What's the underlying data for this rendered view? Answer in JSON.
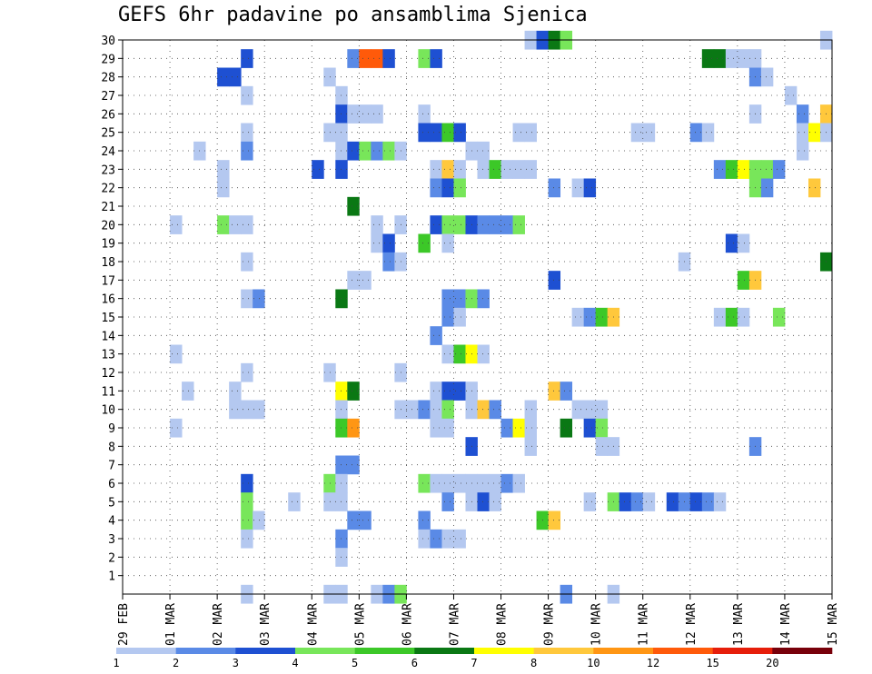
{
  "chart_data": {
    "type": "heatmap",
    "title": "GEFS 6hr padavine po ansamblima Sjenica",
    "x_ticks": [
      "29 FEB",
      "01 MAR",
      "02 MAR",
      "03 MAR",
      "04 MAR",
      "05 MAR",
      "06 MAR",
      "07 MAR",
      "08 MAR",
      "09 MAR",
      "10 MAR",
      "11 MAR",
      "12 MAR",
      "13 MAR",
      "14 MAR",
      "15 MAR"
    ],
    "y_ticks": [
      1,
      2,
      3,
      4,
      5,
      6,
      7,
      8,
      9,
      10,
      11,
      12,
      13,
      14,
      15,
      16,
      17,
      18,
      19,
      20,
      21,
      22,
      23,
      24,
      25,
      26,
      27,
      28,
      29,
      30
    ],
    "xlim_steps": [
      0,
      60
    ],
    "ylim_members": [
      0,
      30
    ],
    "grid": "dotted",
    "colorbar": {
      "levels": [
        "1",
        "2",
        "3",
        "4",
        "5",
        "6",
        "7",
        "8",
        "10",
        "12",
        "15",
        "20"
      ],
      "colors": [
        "#b4c8f0",
        "#5a8ae6",
        "#1e50d2",
        "#78e65a",
        "#3cc828",
        "#0a7814",
        "#ffff00",
        "#ffc83c",
        "#ff9614",
        "#ff5a0a",
        "#e61e0a",
        "#78000a"
      ]
    },
    "cells": [
      [
        34,
        30,
        1
      ],
      [
        35,
        30,
        3
      ],
      [
        36,
        30,
        6
      ],
      [
        37,
        30,
        4
      ],
      [
        59,
        30,
        1
      ],
      [
        10,
        29,
        3
      ],
      [
        19,
        29,
        2
      ],
      [
        20,
        29,
        10
      ],
      [
        21,
        29,
        10
      ],
      [
        22,
        29,
        3
      ],
      [
        25,
        29,
        4
      ],
      [
        26,
        29,
        3
      ],
      [
        49,
        29,
        6
      ],
      [
        50,
        29,
        6
      ],
      [
        51,
        29,
        1
      ],
      [
        52,
        29,
        1
      ],
      [
        53,
        29,
        1
      ],
      [
        8,
        28,
        3
      ],
      [
        9,
        28,
        3
      ],
      [
        17,
        28,
        1
      ],
      [
        53,
        28,
        2
      ],
      [
        54,
        28,
        1
      ],
      [
        10,
        27,
        1
      ],
      [
        18,
        27,
        1
      ],
      [
        56,
        27,
        1
      ],
      [
        18,
        26,
        3
      ],
      [
        19,
        26,
        1
      ],
      [
        20,
        26,
        1
      ],
      [
        21,
        26,
        1
      ],
      [
        25,
        26,
        1
      ],
      [
        53,
        26,
        1
      ],
      [
        57,
        26,
        2
      ],
      [
        59,
        26,
        8
      ],
      [
        10,
        25,
        1
      ],
      [
        17,
        25,
        1
      ],
      [
        18,
        25,
        1
      ],
      [
        25,
        25,
        3
      ],
      [
        26,
        25,
        3
      ],
      [
        27,
        25,
        5
      ],
      [
        28,
        25,
        3
      ],
      [
        33,
        25,
        1
      ],
      [
        34,
        25,
        1
      ],
      [
        43,
        25,
        1
      ],
      [
        44,
        25,
        1
      ],
      [
        48,
        25,
        2
      ],
      [
        49,
        25,
        1
      ],
      [
        57,
        25,
        1
      ],
      [
        58,
        25,
        7
      ],
      [
        59,
        25,
        1
      ],
      [
        6,
        24,
        1
      ],
      [
        10,
        24,
        2
      ],
      [
        18,
        24,
        1
      ],
      [
        19,
        24,
        3
      ],
      [
        20,
        24,
        4
      ],
      [
        21,
        24,
        2
      ],
      [
        22,
        24,
        4
      ],
      [
        23,
        24,
        1
      ],
      [
        29,
        24,
        1
      ],
      [
        30,
        24,
        1
      ],
      [
        57,
        24,
        1
      ],
      [
        8,
        23,
        1
      ],
      [
        16,
        23,
        3
      ],
      [
        18,
        23,
        3
      ],
      [
        26,
        23,
        1
      ],
      [
        27,
        23,
        8
      ],
      [
        28,
        23,
        1
      ],
      [
        30,
        23,
        1
      ],
      [
        31,
        23,
        5
      ],
      [
        32,
        23,
        1
      ],
      [
        33,
        23,
        1
      ],
      [
        34,
        23,
        1
      ],
      [
        50,
        23,
        2
      ],
      [
        51,
        23,
        5
      ],
      [
        52,
        23,
        7
      ],
      [
        53,
        23,
        4
      ],
      [
        54,
        23,
        4
      ],
      [
        55,
        23,
        2
      ],
      [
        8,
        22,
        1
      ],
      [
        26,
        22,
        2
      ],
      [
        27,
        22,
        3
      ],
      [
        28,
        22,
        4
      ],
      [
        36,
        22,
        2
      ],
      [
        38,
        22,
        1
      ],
      [
        39,
        22,
        3
      ],
      [
        53,
        22,
        4
      ],
      [
        54,
        22,
        2
      ],
      [
        58,
        22,
        8
      ],
      [
        19,
        21,
        6
      ],
      [
        4,
        20,
        1
      ],
      [
        8,
        20,
        4
      ],
      [
        9,
        20,
        1
      ],
      [
        10,
        20,
        1
      ],
      [
        21,
        20,
        1
      ],
      [
        23,
        20,
        1
      ],
      [
        26,
        20,
        3
      ],
      [
        27,
        20,
        4
      ],
      [
        28,
        20,
        4
      ],
      [
        29,
        20,
        3
      ],
      [
        30,
        20,
        2
      ],
      [
        31,
        20,
        2
      ],
      [
        32,
        20,
        2
      ],
      [
        33,
        20,
        4
      ],
      [
        21,
        19,
        1
      ],
      [
        22,
        19,
        3
      ],
      [
        25,
        19,
        5
      ],
      [
        27,
        19,
        1
      ],
      [
        51,
        19,
        3
      ],
      [
        52,
        19,
        1
      ],
      [
        10,
        18,
        1
      ],
      [
        22,
        18,
        2
      ],
      [
        23,
        18,
        1
      ],
      [
        47,
        18,
        1
      ],
      [
        59,
        18,
        6
      ],
      [
        19,
        17,
        1
      ],
      [
        20,
        17,
        1
      ],
      [
        36,
        17,
        3
      ],
      [
        52,
        17,
        5
      ],
      [
        53,
        17,
        8
      ],
      [
        10,
        16,
        1
      ],
      [
        11,
        16,
        2
      ],
      [
        18,
        16,
        6
      ],
      [
        27,
        16,
        2
      ],
      [
        28,
        16,
        2
      ],
      [
        29,
        16,
        4
      ],
      [
        30,
        16,
        2
      ],
      [
        27,
        15,
        2
      ],
      [
        28,
        15,
        1
      ],
      [
        38,
        15,
        1
      ],
      [
        39,
        15,
        2
      ],
      [
        40,
        15,
        5
      ],
      [
        41,
        15,
        8
      ],
      [
        50,
        15,
        1
      ],
      [
        51,
        15,
        5
      ],
      [
        52,
        15,
        1
      ],
      [
        55,
        15,
        4
      ],
      [
        26,
        14,
        2
      ],
      [
        4,
        13,
        1
      ],
      [
        27,
        13,
        1
      ],
      [
        28,
        13,
        5
      ],
      [
        29,
        13,
        7
      ],
      [
        30,
        13,
        1
      ],
      [
        10,
        12,
        1
      ],
      [
        17,
        12,
        1
      ],
      [
        23,
        12,
        1
      ],
      [
        5,
        11,
        1
      ],
      [
        9,
        11,
        1
      ],
      [
        18,
        11,
        7
      ],
      [
        19,
        11,
        6
      ],
      [
        26,
        11,
        1
      ],
      [
        27,
        11,
        3
      ],
      [
        28,
        11,
        3
      ],
      [
        29,
        11,
        1
      ],
      [
        36,
        11,
        8
      ],
      [
        37,
        11,
        2
      ],
      [
        9,
        10,
        1
      ],
      [
        10,
        10,
        1
      ],
      [
        11,
        10,
        1
      ],
      [
        18,
        10,
        1
      ],
      [
        23,
        10,
        1
      ],
      [
        24,
        10,
        1
      ],
      [
        25,
        10,
        2
      ],
      [
        26,
        10,
        1
      ],
      [
        27,
        10,
        4
      ],
      [
        29,
        10,
        1
      ],
      [
        30,
        10,
        8
      ],
      [
        31,
        10,
        2
      ],
      [
        34,
        10,
        1
      ],
      [
        38,
        10,
        1
      ],
      [
        39,
        10,
        1
      ],
      [
        40,
        10,
        1
      ],
      [
        4,
        9,
        1
      ],
      [
        18,
        9,
        5
      ],
      [
        19,
        9,
        9
      ],
      [
        26,
        9,
        1
      ],
      [
        27,
        9,
        1
      ],
      [
        32,
        9,
        2
      ],
      [
        33,
        9,
        7
      ],
      [
        34,
        9,
        1
      ],
      [
        37,
        9,
        6
      ],
      [
        39,
        9,
        3
      ],
      [
        40,
        9,
        4
      ],
      [
        29,
        8,
        3
      ],
      [
        34,
        8,
        1
      ],
      [
        40,
        8,
        1
      ],
      [
        41,
        8,
        1
      ],
      [
        53,
        8,
        2
      ],
      [
        18,
        7,
        2
      ],
      [
        19,
        7,
        2
      ],
      [
        10,
        6,
        3
      ],
      [
        17,
        6,
        4
      ],
      [
        18,
        6,
        1
      ],
      [
        25,
        6,
        4
      ],
      [
        26,
        6,
        1
      ],
      [
        27,
        6,
        1
      ],
      [
        28,
        6,
        1
      ],
      [
        29,
        6,
        1
      ],
      [
        30,
        6,
        1
      ],
      [
        31,
        6,
        1
      ],
      [
        32,
        6,
        2
      ],
      [
        33,
        6,
        1
      ],
      [
        10,
        5,
        4
      ],
      [
        14,
        5,
        1
      ],
      [
        17,
        5,
        1
      ],
      [
        18,
        5,
        1
      ],
      [
        27,
        5,
        2
      ],
      [
        29,
        5,
        1
      ],
      [
        30,
        5,
        3
      ],
      [
        31,
        5,
        1
      ],
      [
        39,
        5,
        1
      ],
      [
        41,
        5,
        4
      ],
      [
        42,
        5,
        3
      ],
      [
        43,
        5,
        2
      ],
      [
        44,
        5,
        1
      ],
      [
        46,
        5,
        3
      ],
      [
        47,
        5,
        2
      ],
      [
        48,
        5,
        3
      ],
      [
        49,
        5,
        2
      ],
      [
        50,
        5,
        1
      ],
      [
        10,
        4,
        4
      ],
      [
        11,
        4,
        1
      ],
      [
        19,
        4,
        2
      ],
      [
        20,
        4,
        2
      ],
      [
        25,
        4,
        2
      ],
      [
        35,
        4,
        5
      ],
      [
        36,
        4,
        8
      ],
      [
        10,
        3,
        1
      ],
      [
        18,
        3,
        2
      ],
      [
        25,
        3,
        1
      ],
      [
        26,
        3,
        2
      ],
      [
        27,
        3,
        1
      ],
      [
        28,
        3,
        1
      ],
      [
        18,
        2,
        1
      ],
      [
        10,
        0,
        1
      ],
      [
        17,
        0,
        1
      ],
      [
        18,
        0,
        1
      ],
      [
        21,
        0,
        1
      ],
      [
        22,
        0,
        2
      ],
      [
        23,
        0,
        4
      ],
      [
        37,
        0,
        2
      ],
      [
        41,
        0,
        1
      ]
    ]
  }
}
